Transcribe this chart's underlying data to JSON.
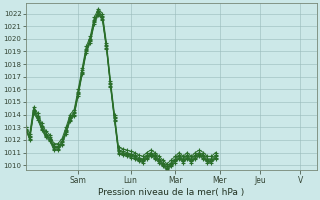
{
  "xlabel": "Pression niveau de la mer( hPa )",
  "background_color": "#cce8e8",
  "plot_bg_color": "#cce8e8",
  "grid_color": "#99bbbb",
  "line_color": "#2a6e2a",
  "marker_color": "#2a6e2a",
  "ylim": [
    1009.6,
    1022.8
  ],
  "yticks": [
    1010,
    1011,
    1012,
    1013,
    1014,
    1015,
    1016,
    1017,
    1018,
    1019,
    1020,
    1021,
    1022
  ],
  "day_labels": [
    "Sam",
    "Lun",
    "Mar",
    "Mer",
    "Jeu",
    "V"
  ],
  "xlim": [
    0,
    72
  ],
  "day_x": [
    13,
    26,
    37,
    48,
    58,
    68
  ],
  "series1": [
    1012.8,
    1012.3,
    1014.4,
    1013.9,
    1013.1,
    1012.5,
    1012.2,
    1011.5,
    1011.5,
    1011.9,
    1012.8,
    1013.8,
    1014.2,
    1015.8,
    1017.5,
    1019.2,
    1020.0,
    1021.5,
    1022.2,
    1021.8,
    1019.5,
    1016.5,
    1013.8,
    1011.2,
    1011.1,
    1011.0,
    1010.9,
    1010.8,
    1010.6,
    1010.5,
    1010.8,
    1011.0,
    1010.8,
    1010.5,
    1010.2,
    1009.9,
    1010.2,
    1010.5,
    1010.8,
    1010.5,
    1010.8,
    1010.5,
    1010.8,
    1011.0,
    1010.8,
    1010.5,
    1010.5,
    1010.8
  ],
  "series2": [
    1012.8,
    1012.1,
    1014.2,
    1013.7,
    1012.9,
    1012.3,
    1012.0,
    1011.3,
    1011.3,
    1011.7,
    1012.6,
    1013.6,
    1014.0,
    1015.6,
    1017.3,
    1019.0,
    1019.8,
    1021.3,
    1022.0,
    1021.6,
    1019.3,
    1016.3,
    1013.6,
    1011.0,
    1010.9,
    1010.8,
    1010.7,
    1010.6,
    1010.4,
    1010.3,
    1010.6,
    1010.8,
    1010.6,
    1010.3,
    1010.0,
    1009.7,
    1010.0,
    1010.3,
    1010.6,
    1010.3,
    1010.6,
    1010.3,
    1010.6,
    1010.8,
    1010.6,
    1010.3,
    1010.3,
    1010.6
  ],
  "series3": [
    1013.0,
    1012.5,
    1014.6,
    1014.1,
    1013.3,
    1012.7,
    1012.4,
    1011.7,
    1011.7,
    1012.1,
    1013.0,
    1014.0,
    1014.4,
    1016.0,
    1017.7,
    1019.4,
    1020.2,
    1021.7,
    1022.4,
    1022.0,
    1019.7,
    1016.7,
    1014.0,
    1011.4,
    1011.3,
    1011.2,
    1011.1,
    1011.0,
    1010.8,
    1010.7,
    1011.0,
    1011.2,
    1011.0,
    1010.7,
    1010.4,
    1010.1,
    1010.4,
    1010.7,
    1011.0,
    1010.7,
    1011.0,
    1010.7,
    1011.0,
    1011.2,
    1011.0,
    1010.7,
    1010.7,
    1011.0
  ],
  "series4": [
    1013.0,
    1012.2,
    1014.3,
    1013.8,
    1013.0,
    1012.4,
    1012.1,
    1011.4,
    1011.4,
    1011.8,
    1012.7,
    1013.7,
    1014.1,
    1015.7,
    1017.4,
    1019.1,
    1019.9,
    1021.4,
    1022.1,
    1021.7,
    1019.4,
    1016.4,
    1013.7,
    1011.1,
    1011.0,
    1010.9,
    1010.8,
    1010.7,
    1010.5,
    1010.4,
    1010.7,
    1010.9,
    1010.7,
    1010.4,
    1010.1,
    1009.8,
    1010.1,
    1010.4,
    1010.7,
    1010.4,
    1010.7,
    1010.4,
    1010.7,
    1010.9,
    1010.7,
    1010.4,
    1010.4,
    1010.7
  ],
  "series5": [
    1012.9,
    1012.0,
    1014.1,
    1013.6,
    1012.8,
    1012.2,
    1011.9,
    1011.2,
    1011.2,
    1011.6,
    1012.5,
    1013.5,
    1013.9,
    1015.5,
    1017.2,
    1018.9,
    1019.7,
    1021.2,
    1021.9,
    1021.5,
    1019.2,
    1016.2,
    1013.5,
    1010.9,
    1010.8,
    1010.7,
    1010.6,
    1010.5,
    1010.3,
    1010.2,
    1010.5,
    1010.7,
    1010.5,
    1010.2,
    1009.9,
    1009.6,
    1009.9,
    1010.2,
    1010.5,
    1010.2,
    1010.5,
    1010.2,
    1010.5,
    1010.7,
    1010.5,
    1010.2,
    1010.2,
    1010.5
  ]
}
